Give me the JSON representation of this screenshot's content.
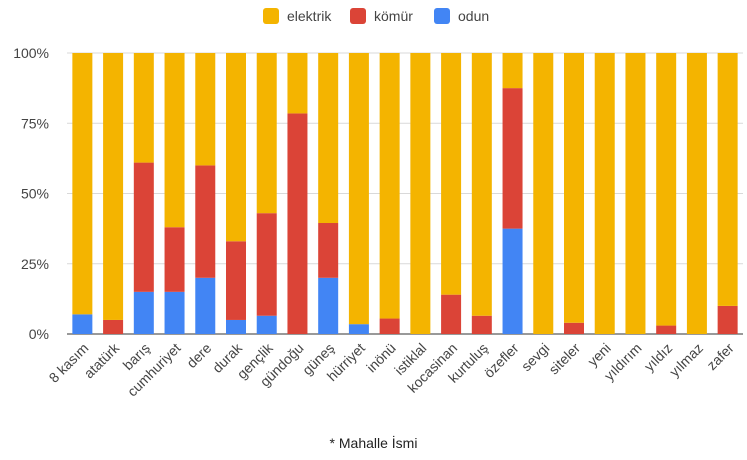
{
  "chart_data": {
    "type": "bar",
    "stacked": true,
    "percent_stacked": true,
    "categories": [
      "8 kasım",
      "atatürk",
      "barış",
      "cumhuriyet",
      "dere",
      "durak",
      "gençlik",
      "gündoğu",
      "güneş",
      "hürriyet",
      "inönü",
      "istiklal",
      "kocasinan",
      "kurtuluş",
      "özefler",
      "sevgi",
      "siteler",
      "yeni",
      "yıldırım",
      "yıldız",
      "yılmaz",
      "zafer"
    ],
    "series": [
      {
        "name": "odun",
        "color": "#4285f4",
        "values": [
          7,
          0,
          15,
          15,
          20,
          5,
          6.5,
          0,
          20,
          3.5,
          0,
          0,
          0,
          0,
          37.5,
          0,
          0,
          0,
          0,
          0,
          0,
          0
        ]
      },
      {
        "name": "kömür",
        "color": "#db4437",
        "values": [
          0,
          5,
          46,
          23,
          40,
          28,
          36.5,
          78.5,
          19.5,
          0,
          5.5,
          0,
          14,
          6.5,
          50,
          0,
          4,
          0,
          0,
          3,
          0,
          10
        ]
      },
      {
        "name": "elektrik",
        "color": "#f4b400",
        "values": [
          93,
          95,
          39,
          62,
          40,
          67,
          57,
          21.5,
          60.5,
          96.5,
          94.5,
          100,
          86,
          93.5,
          12.5,
          100,
          96,
          100,
          100,
          97,
          100,
          90
        ]
      }
    ],
    "legend_order": [
      "elektrik",
      "kömür",
      "odun"
    ],
    "legend": "top",
    "y_ticks": [
      "0%",
      "25%",
      "50%",
      "75%",
      "100%"
    ],
    "ylim": [
      0,
      100
    ],
    "xlabel": "* Mahalle İsmi",
    "ylabel": "",
    "grid": true
  }
}
